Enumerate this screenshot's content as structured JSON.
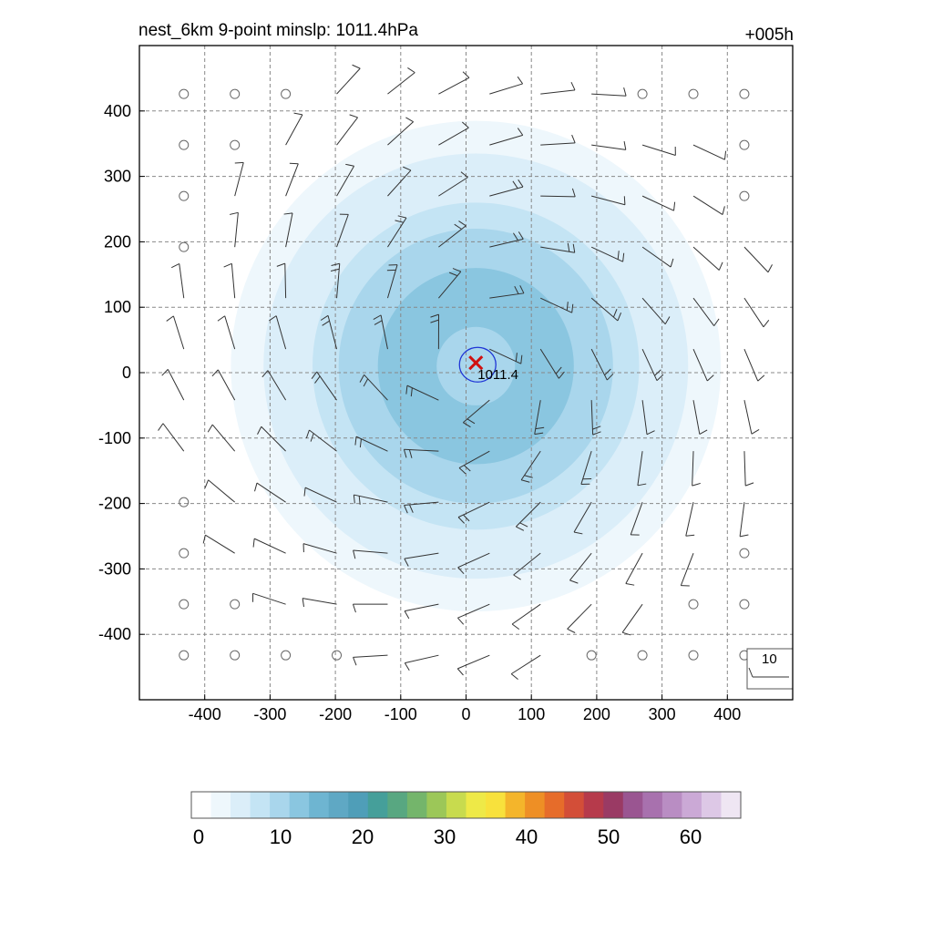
{
  "chart_data": {
    "type": "heatmap",
    "title_left": "nest_6km  9-point minslp: 1011.4hPa",
    "title_right": "+005h",
    "xlim": [
      -500,
      500
    ],
    "ylim": [
      -500,
      500
    ],
    "x_ticks": [
      -400,
      -300,
      -200,
      -100,
      0,
      100,
      200,
      300,
      400
    ],
    "y_ticks": [
      400,
      300,
      200,
      100,
      0,
      -100,
      -200,
      -300,
      -400
    ],
    "grid": true,
    "field": {
      "center_x": 15,
      "center_y": 10,
      "shaded_levels": [
        {
          "radius": 430,
          "value": 2
        },
        {
          "radius": 375,
          "value": 4
        },
        {
          "radius": 325,
          "value": 6
        },
        {
          "radius": 250,
          "value": 9
        },
        {
          "radius": 210,
          "value": 11
        },
        {
          "radius": 150,
          "value": 12
        },
        {
          "radius": 60,
          "value": 10
        }
      ]
    },
    "min_slp": {
      "x": 15,
      "y": 15,
      "label": "1011.4"
    },
    "barb_spacing": 78,
    "barb_reference": {
      "label": "10"
    },
    "colorbar": {
      "min": 0,
      "max": 67,
      "tick_labels": [
        "0",
        "10",
        "20",
        "30",
        "40",
        "50",
        "60"
      ],
      "tick_values": [
        0,
        10,
        20,
        30,
        40,
        50,
        60
      ]
    },
    "colors": {
      "levels": [
        "#ffffff",
        "#eef7fc",
        "#dbeef9",
        "#c4e4f4",
        "#a9d6ec",
        "#8ac6e0",
        "#6eb5d1",
        "#5fa8c4",
        "#4f9eb8",
        "#459f9a",
        "#58a781",
        "#74b56b",
        "#9cc758",
        "#c8db4e",
        "#eee947",
        "#f8e13c",
        "#f4b52b",
        "#ee8f25",
        "#e66c2a",
        "#d34e38",
        "#b63a4b",
        "#9a3a64",
        "#9a5591",
        "#a871ae",
        "#b98dc3",
        "#cba9d6",
        "#ddc8e6",
        "#efe6f3"
      ],
      "contour": "#1f35d6",
      "marker": "#d01010",
      "grid": "#888888"
    }
  }
}
